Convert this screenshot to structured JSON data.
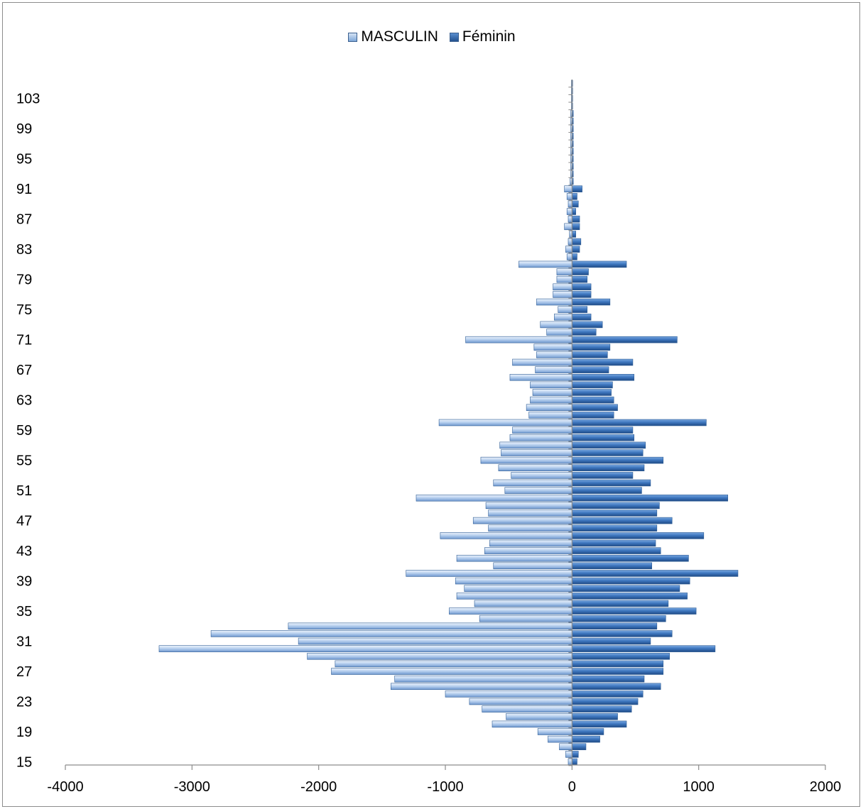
{
  "legend": {
    "masculin": "MASCULIN",
    "feminin": "Féminin"
  },
  "chart_data": {
    "type": "bar",
    "orientation": "horizontal",
    "grid": false,
    "legend_position": "top",
    "xlim": [
      -4000,
      2000
    ],
    "x_ticks": [
      -4000,
      -3000,
      -2000,
      -1000,
      0,
      1000,
      2000
    ],
    "ylim": [
      15,
      105
    ],
    "y_tick_labels": [
      "15",
      "19",
      "23",
      "27",
      "31",
      "35",
      "39",
      "43",
      "47",
      "51",
      "55",
      "59",
      "63",
      "67",
      "71",
      "75",
      "79",
      "83",
      "87",
      "91",
      "95",
      "99",
      "103"
    ],
    "categories": [
      15,
      16,
      17,
      18,
      19,
      20,
      21,
      22,
      23,
      24,
      25,
      26,
      27,
      28,
      29,
      30,
      31,
      32,
      33,
      34,
      35,
      36,
      37,
      38,
      39,
      40,
      41,
      42,
      43,
      44,
      45,
      46,
      47,
      48,
      49,
      50,
      51,
      52,
      53,
      54,
      55,
      56,
      57,
      58,
      59,
      60,
      61,
      62,
      63,
      64,
      65,
      66,
      67,
      68,
      69,
      70,
      71,
      72,
      73,
      74,
      75,
      76,
      77,
      78,
      79,
      80,
      81,
      82,
      83,
      84,
      85,
      86,
      87,
      88,
      89,
      90,
      91,
      92,
      93,
      94,
      95,
      96,
      97,
      98,
      99,
      100,
      101,
      102,
      103,
      104,
      105
    ],
    "series": [
      {
        "name": "MASCULIN",
        "color": "#a9c6ea",
        "values": [
          -30,
          -50,
          -100,
          -190,
          -270,
          -630,
          -520,
          -710,
          -810,
          -1000,
          -1430,
          -1400,
          -1900,
          -1870,
          -2090,
          -3260,
          -2160,
          -2850,
          -2240,
          -730,
          -970,
          -770,
          -910,
          -850,
          -920,
          -1310,
          -620,
          -910,
          -690,
          -650,
          -1040,
          -660,
          -780,
          -660,
          -680,
          -1230,
          -530,
          -620,
          -480,
          -580,
          -720,
          -560,
          -570,
          -490,
          -470,
          -1050,
          -340,
          -360,
          -330,
          -310,
          -330,
          -490,
          -290,
          -470,
          -280,
          -300,
          -840,
          -200,
          -250,
          -140,
          -110,
          -280,
          -150,
          -150,
          -120,
          -120,
          -420,
          -40,
          -50,
          -30,
          -20,
          -60,
          -30,
          -40,
          -30,
          -40,
          -60,
          -15,
          -10,
          -10,
          -10,
          -10,
          -10,
          -10,
          -10,
          -10,
          -10,
          -5,
          -5,
          -5,
          -5
        ]
      },
      {
        "name": "Féminin",
        "color": "#3f78c0",
        "values": [
          40,
          50,
          110,
          220,
          250,
          430,
          360,
          470,
          520,
          560,
          700,
          570,
          720,
          720,
          770,
          1130,
          620,
          790,
          670,
          740,
          980,
          760,
          910,
          850,
          930,
          1310,
          630,
          920,
          700,
          660,
          1040,
          670,
          790,
          670,
          690,
          1230,
          550,
          620,
          480,
          570,
          720,
          560,
          580,
          490,
          480,
          1060,
          330,
          360,
          330,
          310,
          320,
          490,
          290,
          480,
          280,
          300,
          830,
          190,
          240,
          150,
          120,
          300,
          150,
          150,
          120,
          130,
          430,
          40,
          60,
          70,
          30,
          60,
          60,
          30,
          50,
          40,
          80,
          10,
          10,
          10,
          10,
          10,
          10,
          10,
          10,
          10,
          10,
          5,
          5,
          5,
          5
        ]
      }
    ]
  }
}
